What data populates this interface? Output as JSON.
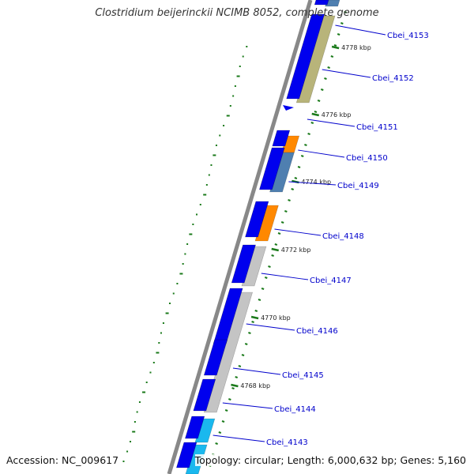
{
  "title": "Clostridium beijerinckii NCIMB 8052, complete genome",
  "accession": "Accession: NC_009617",
  "summary": "Topology: circular; Length: 6,000,632 bp; Genes: 5,160",
  "colors": {
    "backbone": "#888888",
    "cds": "#0000ee",
    "label_line": "#0000cc",
    "tick": "#1a7a1a",
    "orange": "#ff8800",
    "steel": "#4f7fb0",
    "olive": "#b8b47a",
    "gray": "#c4c4c4",
    "cyan": "#1ab8ee"
  },
  "ticks": [
    {
      "label": "4778 kbp"
    },
    {
      "label": "4776 kbp"
    },
    {
      "label": "4774 kbp"
    },
    {
      "label": "4772 kbp"
    },
    {
      "label": "4770 kbp"
    },
    {
      "label": "4768 kbp"
    }
  ],
  "genes": [
    {
      "label": "Cbei_4153"
    },
    {
      "label": "Cbei_4152"
    },
    {
      "label": "Cbei_4151"
    },
    {
      "label": "Cbei_4150"
    },
    {
      "label": "Cbei_4149"
    },
    {
      "label": "Cbei_4148"
    },
    {
      "label": "Cbei_4147"
    },
    {
      "label": "Cbei_4146"
    },
    {
      "label": "Cbei_4145"
    },
    {
      "label": "Cbei_4144"
    },
    {
      "label": "Cbei_4143"
    }
  ]
}
